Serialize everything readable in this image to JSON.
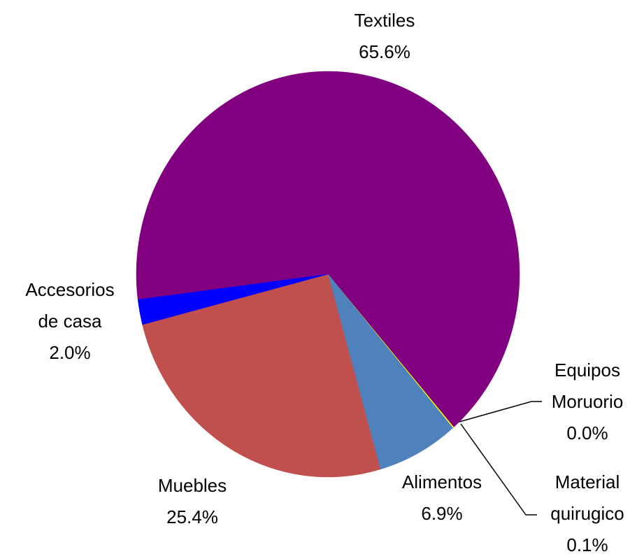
{
  "chart_data": {
    "type": "pie",
    "categories": [
      "Textiles",
      "Material quirugico",
      "Equipos Moruorio",
      "Alimentos",
      "Muebles",
      "Accesorios de casa"
    ],
    "values": [
      65.6,
      0.1,
      0.0,
      6.9,
      25.4,
      2.0
    ],
    "value_labels": [
      "65.6%",
      "0.1%",
      "0.0%",
      "6.9%",
      "25.4%",
      "2.0%"
    ],
    "colors": [
      "#800080",
      "#ffff00",
      "#00b050",
      "#4f81bd",
      "#c0504d",
      "#0000ff"
    ]
  }
}
